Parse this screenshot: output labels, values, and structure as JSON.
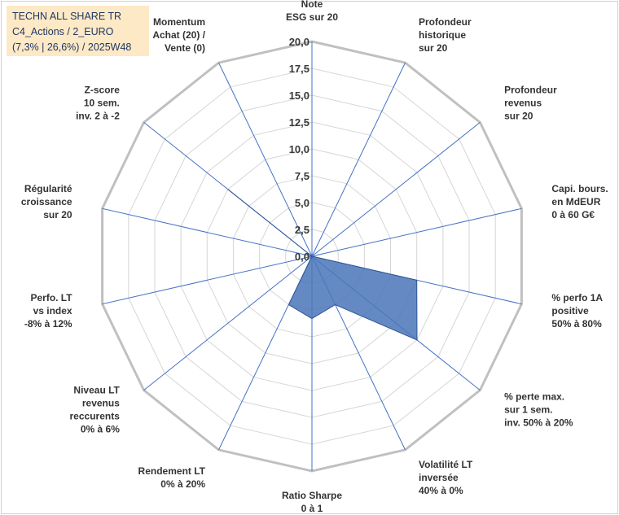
{
  "title_box": {
    "line1": "TECHN ALL SHARE TR",
    "line2": "C4_Actions / 2_EURO",
    "line3": "(7,3% | 26,6%) / 2025W48"
  },
  "chart_data": {
    "type": "radar",
    "range": [
      0,
      20
    ],
    "tick_step": 2.5,
    "tick_labels": [
      "0,0",
      "2,5",
      "5,0",
      "7,5",
      "10,0",
      "12,5",
      "15,0",
      "17,5",
      "20,0"
    ],
    "axes": [
      [
        "Note",
        "ESG sur 20"
      ],
      [
        "Profondeur",
        "historique",
        "sur 20"
      ],
      [
        "Profondeur",
        "revenus",
        "sur 20"
      ],
      [
        "Capi. bours.",
        "en MdEUR",
        "0 à 60 G€"
      ],
      [
        "% perfo 1A",
        "positive",
        "50% à 80%"
      ],
      [
        "% perte max.",
        "sur 1 sem.",
        "inv. 50% à 20%"
      ],
      [
        "Volatilité LT",
        "inversée",
        "40% à 0%"
      ],
      [
        "Ratio Sharpe",
        "0 à 1"
      ],
      [
        "Rendement LT",
        "0% à 20%"
      ],
      [
        "Niveau LT",
        "revenus",
        "reccurents",
        "0% à 6%"
      ],
      [
        "Perfo. LT",
        "vs index",
        "-8% à 12%"
      ],
      [
        "Régularité",
        "croissance",
        "sur 20"
      ],
      [
        "Z-score",
        "10 sem.",
        "inv. 2 à -2"
      ],
      [
        "Momentum",
        "Achat (20) /",
        "Vente (0)"
      ]
    ],
    "series": [
      {
        "name": "TECHN ALL SHARE TR",
        "values": [
          0,
          0,
          0,
          0,
          10,
          12.5,
          5,
          5.8,
          5,
          0,
          0,
          0,
          10,
          0
        ],
        "color": "#4a76b8"
      }
    ],
    "colors": {
      "grid": "#d6d6d6",
      "ring_outer": "#c0c0c0",
      "spoke": "#4472c4",
      "fill": "#4a76b8",
      "stroke": "#2e5597"
    }
  }
}
